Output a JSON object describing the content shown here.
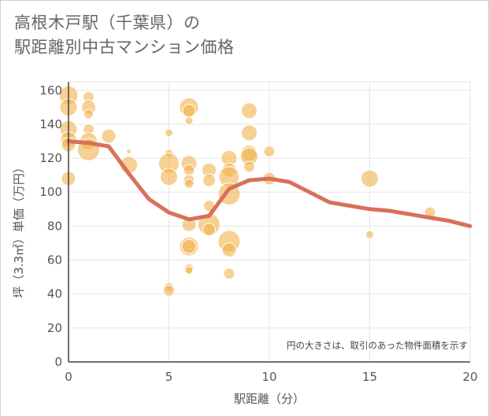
{
  "title": {
    "line1": "高根木戸駅（千葉県）の",
    "line2": "駅距離別中古マンション価格"
  },
  "chart_data": {
    "type": "scatter",
    "title": "高根木戸駅（千葉県）の駅距離別中古マンション価格",
    "xlabel": "駅距離（分）",
    "ylabel": "坪（3.3㎡）単価（万円）",
    "note": "円の大きさは、取引のあった物件面積を示す",
    "xlim": [
      0,
      20
    ],
    "ylim": [
      0,
      165
    ],
    "xticks": [
      "0",
      "5",
      "10",
      "15",
      "20"
    ],
    "yticks": [
      "0",
      "20",
      "40",
      "60",
      "80",
      "100",
      "120",
      "140",
      "160"
    ],
    "grid": true,
    "colors": {
      "bubble": "#f2b24c",
      "line": "#d9705a",
      "grid": "#e6e6e6",
      "axis": "#444444"
    },
    "bubbles": [
      {
        "x": 0,
        "y": 157,
        "s": 12
      },
      {
        "x": 0,
        "y": 150,
        "s": 11
      },
      {
        "x": 0,
        "y": 137,
        "s": 11
      },
      {
        "x": 0,
        "y": 131,
        "s": 10
      },
      {
        "x": 0,
        "y": 128,
        "s": 9
      },
      {
        "x": 0,
        "y": 108,
        "s": 9
      },
      {
        "x": 1,
        "y": 156,
        "s": 7
      },
      {
        "x": 1,
        "y": 150,
        "s": 9
      },
      {
        "x": 1,
        "y": 146,
        "s": 6
      },
      {
        "x": 1,
        "y": 137,
        "s": 7
      },
      {
        "x": 1,
        "y": 130,
        "s": 11
      },
      {
        "x": 1,
        "y": 125,
        "s": 14
      },
      {
        "x": 2,
        "y": 133,
        "s": 9
      },
      {
        "x": 3,
        "y": 124,
        "s": 3
      },
      {
        "x": 3,
        "y": 116,
        "s": 11
      },
      {
        "x": 5,
        "y": 135,
        "s": 5
      },
      {
        "x": 5,
        "y": 123,
        "s": 5
      },
      {
        "x": 5,
        "y": 117,
        "s": 13
      },
      {
        "x": 5,
        "y": 109,
        "s": 11
      },
      {
        "x": 5,
        "y": 44,
        "s": 6
      },
      {
        "x": 5,
        "y": 42,
        "s": 7
      },
      {
        "x": 6,
        "y": 150,
        "s": 12
      },
      {
        "x": 6,
        "y": 148,
        "s": 8
      },
      {
        "x": 6,
        "y": 142,
        "s": 5
      },
      {
        "x": 6,
        "y": 117,
        "s": 10
      },
      {
        "x": 6,
        "y": 113,
        "s": 7
      },
      {
        "x": 6,
        "y": 107,
        "s": 7
      },
      {
        "x": 6,
        "y": 105,
        "s": 6
      },
      {
        "x": 6,
        "y": 81,
        "s": 9
      },
      {
        "x": 6,
        "y": 68,
        "s": 12
      },
      {
        "x": 6,
        "y": 68,
        "s": 9
      },
      {
        "x": 6,
        "y": 55,
        "s": 6
      },
      {
        "x": 6,
        "y": 54,
        "s": 5
      },
      {
        "x": 6,
        "y": 47,
        "s": 1
      },
      {
        "x": 6,
        "y": 44,
        "s": 1
      },
      {
        "x": 6,
        "y": 41,
        "s": 1
      },
      {
        "x": 7,
        "y": 113,
        "s": 9
      },
      {
        "x": 7,
        "y": 107,
        "s": 8
      },
      {
        "x": 7,
        "y": 92,
        "s": 7
      },
      {
        "x": 7,
        "y": 81,
        "s": 14
      },
      {
        "x": 7,
        "y": 78,
        "s": 8
      },
      {
        "x": 8,
        "y": 120,
        "s": 10
      },
      {
        "x": 8,
        "y": 113,
        "s": 9
      },
      {
        "x": 8,
        "y": 109,
        "s": 13
      },
      {
        "x": 8,
        "y": 99,
        "s": 14
      },
      {
        "x": 8,
        "y": 71,
        "s": 14
      },
      {
        "x": 8,
        "y": 66,
        "s": 9
      },
      {
        "x": 8,
        "y": 52,
        "s": 7
      },
      {
        "x": 9,
        "y": 148,
        "s": 10
      },
      {
        "x": 9,
        "y": 135,
        "s": 10
      },
      {
        "x": 9,
        "y": 123,
        "s": 10
      },
      {
        "x": 9,
        "y": 121,
        "s": 11
      },
      {
        "x": 9,
        "y": 115,
        "s": 7
      },
      {
        "x": 10,
        "y": 124,
        "s": 7
      },
      {
        "x": 10,
        "y": 108,
        "s": 8
      },
      {
        "x": 15,
        "y": 108,
        "s": 11
      },
      {
        "x": 15,
        "y": 75,
        "s": 5
      },
      {
        "x": 18,
        "y": 88,
        "s": 7
      }
    ],
    "series": [
      {
        "type": "line",
        "x": [
          0,
          1,
          2,
          3,
          4,
          5,
          6,
          7,
          8,
          9,
          10,
          11,
          12,
          13,
          14,
          15,
          16,
          17,
          18,
          19,
          20
        ],
        "values": [
          130,
          129,
          127,
          111,
          96,
          88,
          84,
          86,
          102,
          107,
          108,
          106,
          100,
          94,
          92,
          90,
          89,
          87,
          85,
          83,
          80
        ]
      }
    ]
  }
}
